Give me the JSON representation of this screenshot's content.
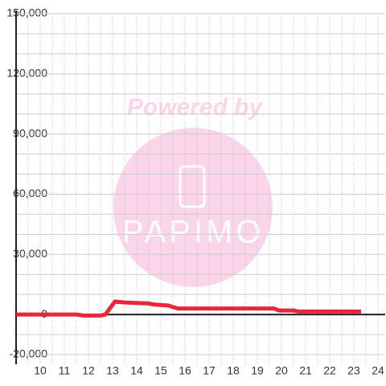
{
  "chart_data": {
    "type": "line",
    "watermark": {
      "text": "Powered by",
      "logo": "PAPIMO"
    },
    "x": [
      9,
      11.5,
      11.8,
      12.5,
      12.7,
      13.1,
      13.5,
      14.5,
      14.7,
      15.3,
      15.7,
      16,
      19.7,
      19.9,
      20.5,
      20.7,
      23.3
    ],
    "series": [
      {
        "color": "#e8283a",
        "values": [
          0,
          0,
          -500,
          -500,
          0,
          6500,
          6000,
          5500,
          5000,
          4500,
          3000,
          3000,
          3000,
          2000,
          2000,
          1500,
          1500
        ]
      }
    ],
    "xlim": [
      9,
      24.3
    ],
    "ylim": [
      -20000,
      150000
    ],
    "xticks": [
      10,
      11,
      12,
      13,
      14,
      15,
      16,
      17,
      18,
      19,
      20,
      21,
      22,
      23,
      24
    ],
    "yticks": [
      {
        "value": -20000,
        "label": "-20,000"
      },
      0,
      {
        "value": 30000,
        "label": "30,000"
      },
      {
        "value": 60000,
        "label": "60,000"
      },
      {
        "value": 90000,
        "label": "90,000"
      },
      {
        "value": 120000,
        "label": "120,000"
      },
      {
        "value": 150000,
        "label": "150,000"
      }
    ],
    "y_grid": [
      -10000,
      10000,
      20000,
      40000,
      50000,
      70000,
      80000,
      100000,
      110000,
      130000,
      140000
    ],
    "x_grid": [
      9.5,
      10.5,
      11.5,
      12.5,
      13.5,
      14.5,
      15.5,
      16.5,
      17.5,
      18.5,
      19.5,
      20.5,
      21.5,
      22.5,
      23.5
    ],
    "grid": true
  }
}
